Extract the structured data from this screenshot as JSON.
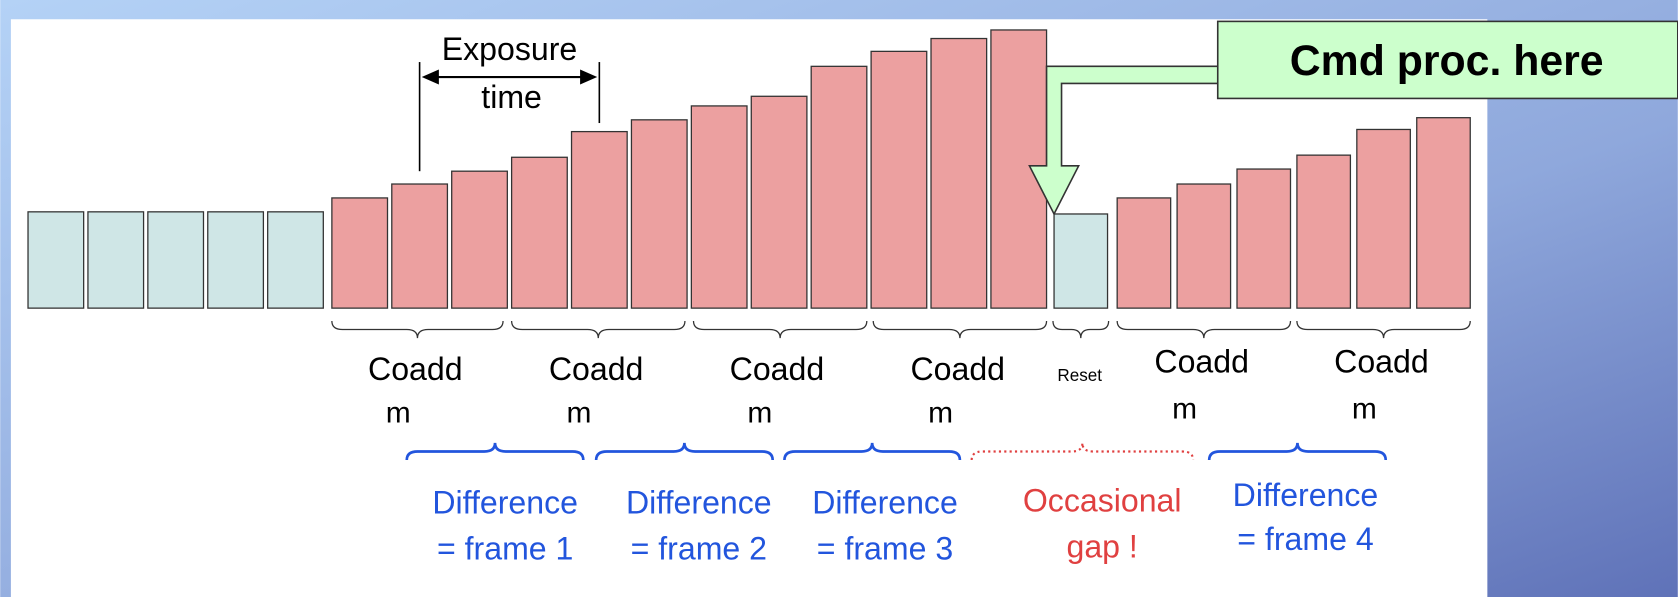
{
  "exposure_label": [
    "Exposure",
    "time"
  ],
  "command_box": {
    "label": "Cmd proc. here"
  },
  "coadd_groups": [
    {
      "label": "Coadd",
      "sub": "m"
    },
    {
      "label": "Coadd",
      "sub": "m"
    },
    {
      "label": "Coadd",
      "sub": "m"
    },
    {
      "label": "Coadd",
      "sub": "m"
    },
    {
      "label": "Coadd",
      "sub": "m"
    },
    {
      "label": "Coadd",
      "sub": "m"
    }
  ],
  "reset_label": "Reset",
  "frames": [
    {
      "line1": "Difference",
      "line2": "= frame 1"
    },
    {
      "line1": "Difference",
      "line2": "= frame 2"
    },
    {
      "line1": "Difference",
      "line2": "= frame 3"
    },
    {
      "line1": "Difference",
      "line2": "= frame 4"
    }
  ],
  "gap": {
    "line1": "Occasional",
    "line2": "gap !"
  }
}
